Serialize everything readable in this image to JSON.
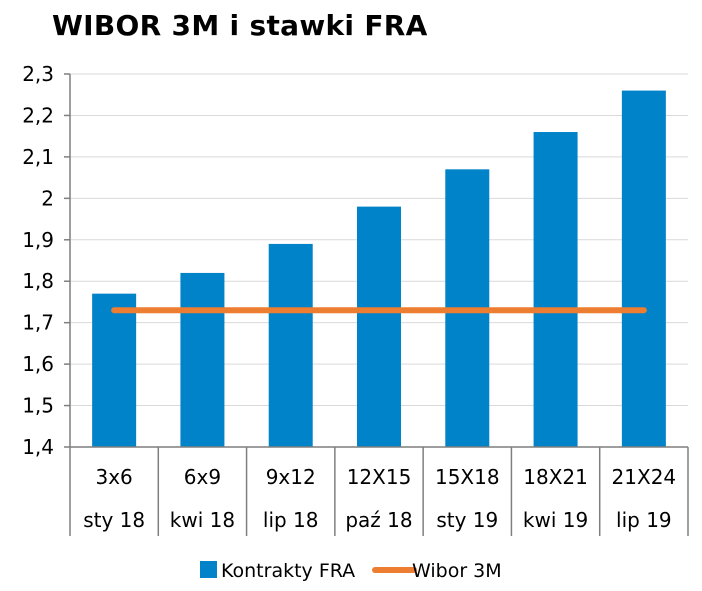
{
  "chart_data": {
    "type": "bar",
    "title": "WIBOR 3M i stawki FRA",
    "xlabel": "",
    "ylabel": "",
    "ylim": [
      1.4,
      2.3
    ],
    "y_ticks": [
      "1,4",
      "1,5",
      "1,6",
      "1,7",
      "1,8",
      "1,9",
      "2",
      "2,1",
      "2,2",
      "2,3"
    ],
    "y_tick_values": [
      1.4,
      1.5,
      1.6,
      1.7,
      1.8,
      1.9,
      2.0,
      2.1,
      2.2,
      2.3
    ],
    "grid": true,
    "legend_position": "bottom",
    "categories": [
      {
        "contract": "3x6",
        "date": "sty 18"
      },
      {
        "contract": "6x9",
        "date": "kwi 18"
      },
      {
        "contract": "9x12",
        "date": "lip 18"
      },
      {
        "contract": "12X15",
        "date": "paź 18"
      },
      {
        "contract": "15X18",
        "date": "sty 19"
      },
      {
        "contract": "18X21",
        "date": "kwi 19"
      },
      {
        "contract": "21X24",
        "date": "lip 19"
      }
    ],
    "series": [
      {
        "name": "Kontrakty FRA",
        "type": "bar",
        "color": "#0083C9",
        "values": [
          1.77,
          1.82,
          1.89,
          1.98,
          2.07,
          2.16,
          2.26
        ]
      },
      {
        "name": "Wibor 3M",
        "type": "line",
        "color": "#ED7D31",
        "values": [
          1.73,
          1.73,
          1.73,
          1.73,
          1.73,
          1.73,
          1.73
        ]
      }
    ]
  }
}
